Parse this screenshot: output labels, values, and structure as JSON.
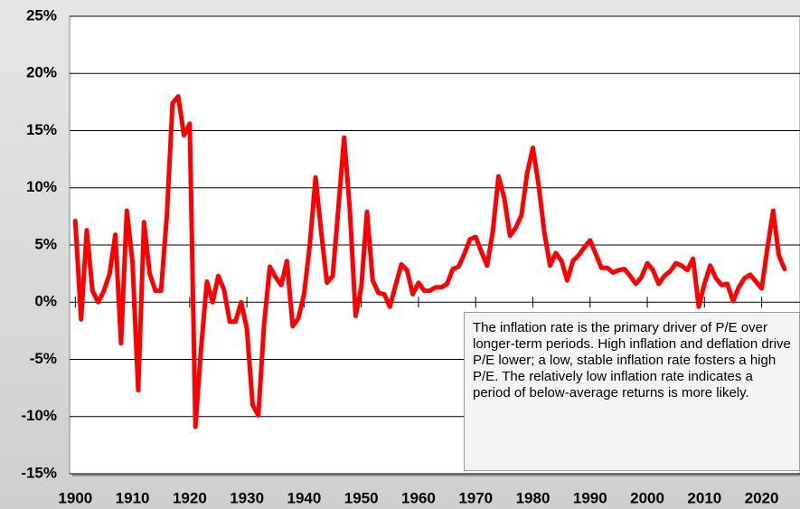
{
  "chart_data": {
    "type": "line",
    "annotation": "The inflation rate is the primary driver of P/E over longer-term periods. High inflation and deflation drive P/E lower; a low, stable inflation rate fosters a high P/E. The relatively low inflation rate indicates a period of below-average returns is more likely.",
    "color": "#ff0000",
    "x": [
      1900,
      1901,
      1902,
      1903,
      1904,
      1905,
      1906,
      1907,
      1908,
      1909,
      1910,
      1911,
      1912,
      1913,
      1914,
      1915,
      1916,
      1917,
      1918,
      1919,
      1920,
      1921,
      1922,
      1923,
      1924,
      1925,
      1926,
      1927,
      1928,
      1929,
      1930,
      1931,
      1932,
      1933,
      1934,
      1935,
      1936,
      1937,
      1938,
      1939,
      1940,
      1941,
      1942,
      1943,
      1944,
      1945,
      1946,
      1947,
      1948,
      1949,
      1950,
      1951,
      1952,
      1953,
      1954,
      1955,
      1956,
      1957,
      1958,
      1959,
      1960,
      1961,
      1962,
      1963,
      1964,
      1965,
      1966,
      1967,
      1968,
      1969,
      1970,
      1971,
      1972,
      1973,
      1974,
      1975,
      1976,
      1977,
      1978,
      1979,
      1980,
      1981,
      1982,
      1983,
      1984,
      1985,
      1986,
      1987,
      1988,
      1989,
      1990,
      1991,
      1992,
      1993,
      1994,
      1995,
      1996,
      1997,
      1998,
      1999,
      2000,
      2001,
      2002,
      2003,
      2004,
      2005,
      2006,
      2007,
      2008,
      2009,
      2010,
      2011,
      2012,
      2013,
      2014,
      2015,
      2016,
      2017,
      2018,
      2019,
      2020,
      2021,
      2022,
      2023,
      2024
    ],
    "values": [
      7.1,
      -1.5,
      6.3,
      1.0,
      0.0,
      1.0,
      2.5,
      5.9,
      -3.6,
      8.0,
      3.5,
      -7.7,
      7.0,
      2.5,
      1.0,
      1.0,
      7.6,
      17.4,
      18.0,
      14.6,
      15.6,
      -10.9,
      -4.0,
      1.8,
      0.0,
      2.3,
      1.1,
      -1.7,
      -1.7,
      0.0,
      -2.3,
      -9.0,
      -9.9,
      -2.0,
      3.1,
      2.2,
      1.5,
      3.6,
      -2.1,
      -1.4,
      0.7,
      5.0,
      10.9,
      6.1,
      1.7,
      2.3,
      8.3,
      14.4,
      8.1,
      -1.2,
      1.3,
      7.9,
      1.9,
      0.8,
      0.7,
      -0.4,
      1.5,
      3.3,
      2.8,
      0.7,
      1.7,
      1.0,
      1.0,
      1.3,
      1.3,
      1.6,
      2.9,
      3.1,
      4.2,
      5.5,
      5.7,
      4.4,
      3.2,
      6.2,
      11.0,
      9.1,
      5.8,
      6.5,
      7.6,
      11.3,
      13.5,
      10.3,
      6.1,
      3.2,
      4.3,
      3.6,
      1.9,
      3.6,
      4.1,
      4.8,
      5.4,
      4.2,
      3.0,
      3.0,
      2.6,
      2.8,
      2.9,
      2.3,
      1.6,
      2.2,
      3.4,
      2.8,
      1.6,
      2.3,
      2.7,
      3.4,
      3.2,
      2.8,
      3.8,
      -0.4,
      1.6,
      3.2,
      2.1,
      1.5,
      1.6,
      0.1,
      1.3,
      2.1,
      2.4,
      1.8,
      1.2,
      4.7,
      8.0,
      4.1,
      2.9
    ],
    "xlim": [
      1899,
      2026.7
    ],
    "xticks": [
      1900,
      1910,
      1920,
      1930,
      1940,
      1950,
      1960,
      1970,
      1980,
      1990,
      2000,
      2010,
      2020
    ],
    "ylim": [
      -15,
      25
    ],
    "yticks": [
      {
        "value": -15,
        "label": "-15%"
      },
      {
        "value": -10,
        "label": "-10%"
      },
      {
        "value": -5,
        "label": "-5%"
      },
      {
        "value": 0,
        "label": "0%"
      },
      {
        "value": 5,
        "label": "5%"
      },
      {
        "value": 10,
        "label": "10%"
      },
      {
        "value": 15,
        "label": "15%"
      },
      {
        "value": 20,
        "label": "20%"
      },
      {
        "value": 25,
        "label": "25%"
      }
    ],
    "grid": true
  }
}
